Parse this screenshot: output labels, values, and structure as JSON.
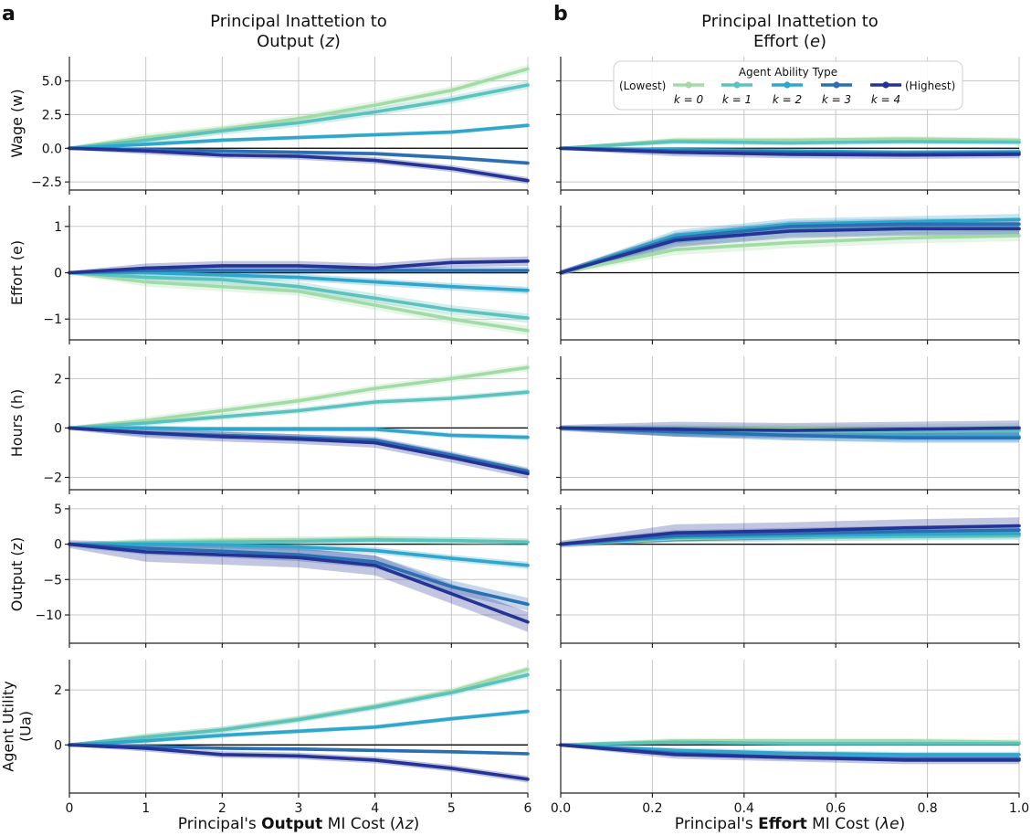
{
  "panel_letters": {
    "a": "a",
    "b": "b"
  },
  "column_titles": {
    "a": {
      "line1": "Principal Inattetion to",
      "line2_text": "Output (",
      "line2_var": "z",
      "line2_end": ")"
    },
    "b": {
      "line1": "Principal Inattetion to",
      "line2_text": "Effort (",
      "line2_var": "e",
      "line2_end": ")"
    }
  },
  "x_labels": {
    "a": {
      "pre": "Principal's ",
      "bold": "Output",
      "post": " MI Cost (",
      "var": "λz",
      "end": ")"
    },
    "b": {
      "pre": "Principal's ",
      "bold": "Effort",
      "post": " MI Cost (",
      "var": "λe",
      "end": ")"
    }
  },
  "row_labels": [
    {
      "lines": [
        "Wage (w)"
      ]
    },
    {
      "lines": [
        "Effort (e)"
      ]
    },
    {
      "lines": [
        "Hours (h)"
      ]
    },
    {
      "lines": [
        "Output (z)"
      ]
    },
    {
      "lines": [
        "Agent Utility",
        "(Ua)"
      ]
    }
  ],
  "legend": {
    "title": "Agent Ability Type",
    "left_text": "(Lowest)",
    "right_text": "(Highest)",
    "entries": [
      "k = 0",
      "k = 1",
      "k = 2",
      "k = 3",
      "k = 4"
    ]
  },
  "colors": [
    "#a3dba7",
    "#5cc2bd",
    "#2fa6cc",
    "#2a6fb2",
    "#253494"
  ],
  "chart_data": [
    {
      "type": "line",
      "panel": "a",
      "row": 0,
      "ylabel": "Wage (w)",
      "ylim": [
        -3.1,
        6.8
      ],
      "yticks": [
        -2.5,
        0.0,
        2.5,
        5.0
      ],
      "xlim": [
        0,
        6
      ],
      "xticks": [
        0,
        1,
        2,
        3,
        4,
        5,
        6
      ],
      "x": [
        0,
        1,
        2,
        3,
        4,
        5,
        6
      ],
      "series": [
        {
          "name": "k = 0",
          "values": [
            0,
            0.8,
            1.4,
            2.2,
            3.2,
            4.3,
            5.9
          ],
          "band": 0.3
        },
        {
          "name": "k = 1",
          "values": [
            0,
            0.6,
            1.3,
            1.9,
            2.7,
            3.6,
            4.7
          ],
          "band": 0.3
        },
        {
          "name": "k = 2",
          "values": [
            0,
            0.3,
            0.6,
            0.8,
            1.0,
            1.2,
            1.7
          ],
          "band": 0.15
        },
        {
          "name": "k = 3",
          "values": [
            0,
            -0.1,
            -0.2,
            -0.3,
            -0.4,
            -0.7,
            -1.1
          ],
          "band": 0.15
        },
        {
          "name": "k = 4",
          "values": [
            0,
            -0.2,
            -0.5,
            -0.6,
            -0.9,
            -1.5,
            -2.4
          ],
          "band": 0.25
        }
      ]
    },
    {
      "type": "line",
      "panel": "a",
      "row": 1,
      "ylabel": "Effort (e)",
      "ylim": [
        -1.45,
        1.45
      ],
      "yticks": [
        -1,
        0,
        1
      ],
      "xlim": [
        0,
        6
      ],
      "xticks": [
        0,
        1,
        2,
        3,
        4,
        5,
        6
      ],
      "x": [
        0,
        1,
        2,
        3,
        4,
        5,
        6
      ],
      "series": [
        {
          "name": "k = 0",
          "values": [
            0,
            -0.2,
            -0.3,
            -0.4,
            -0.7,
            -1.0,
            -1.25
          ],
          "band": 0.1
        },
        {
          "name": "k = 1",
          "values": [
            0,
            -0.1,
            -0.15,
            -0.3,
            -0.55,
            -0.8,
            -0.98
          ],
          "band": 0.1
        },
        {
          "name": "k = 2",
          "values": [
            0,
            0.0,
            -0.05,
            -0.1,
            -0.2,
            -0.3,
            -0.38
          ],
          "band": 0.08
        },
        {
          "name": "k = 3",
          "values": [
            0,
            0.05,
            0.05,
            0.05,
            0.05,
            0.05,
            0.05
          ],
          "band": 0.08
        },
        {
          "name": "k = 4",
          "values": [
            0,
            0.1,
            0.15,
            0.15,
            0.1,
            0.22,
            0.25
          ],
          "band": 0.1
        }
      ]
    },
    {
      "type": "line",
      "panel": "a",
      "row": 2,
      "ylabel": "Hours (h)",
      "ylim": [
        -2.5,
        2.9
      ],
      "yticks": [
        -2,
        0,
        2
      ],
      "xlim": [
        0,
        6
      ],
      "xticks": [
        0,
        1,
        2,
        3,
        4,
        5,
        6
      ],
      "x": [
        0,
        1,
        2,
        3,
        4,
        5,
        6
      ],
      "series": [
        {
          "name": "k = 0",
          "values": [
            0,
            0.3,
            0.7,
            1.1,
            1.6,
            2.0,
            2.45
          ],
          "band": 0.15
        },
        {
          "name": "k = 1",
          "values": [
            0,
            0.2,
            0.45,
            0.7,
            1.05,
            1.2,
            1.45
          ],
          "band": 0.12
        },
        {
          "name": "k = 2",
          "values": [
            0,
            0.0,
            -0.05,
            -0.05,
            -0.05,
            -0.3,
            -0.38
          ],
          "band": 0.1
        },
        {
          "name": "k = 3",
          "values": [
            0,
            -0.2,
            -0.3,
            -0.4,
            -0.5,
            -1.1,
            -1.75
          ],
          "band": 0.15
        },
        {
          "name": "k = 4",
          "values": [
            0,
            -0.2,
            -0.35,
            -0.45,
            -0.6,
            -1.2,
            -1.85
          ],
          "band": 0.2
        }
      ]
    },
    {
      "type": "line",
      "panel": "a",
      "row": 3,
      "ylabel": "Output (z)",
      "ylim": [
        -14,
        5.5
      ],
      "yticks": [
        -10,
        -5,
        0,
        5
      ],
      "xlim": [
        0,
        6
      ],
      "xticks": [
        0,
        1,
        2,
        3,
        4,
        5,
        6
      ],
      "x": [
        0,
        1,
        2,
        3,
        4,
        5,
        6
      ],
      "series": [
        {
          "name": "k = 0",
          "values": [
            0,
            0.3,
            0.5,
            0.6,
            0.7,
            0.5,
            0.3
          ],
          "band": 0.5
        },
        {
          "name": "k = 1",
          "values": [
            0,
            0.2,
            0.3,
            0.4,
            0.6,
            0.5,
            0.3
          ],
          "band": 0.5
        },
        {
          "name": "k = 2",
          "values": [
            0,
            0.0,
            -0.1,
            -0.4,
            -0.9,
            -2.0,
            -3.0
          ],
          "band": 0.5
        },
        {
          "name": "k = 3",
          "values": [
            0,
            -0.6,
            -1.0,
            -1.5,
            -2.5,
            -6.0,
            -8.5
          ],
          "band": 0.9
        },
        {
          "name": "k = 4",
          "values": [
            0,
            -1.1,
            -1.5,
            -1.9,
            -3.0,
            -7.0,
            -11.0
          ],
          "band": 1.4
        }
      ]
    },
    {
      "type": "line",
      "panel": "a",
      "row": 4,
      "ylabel": "Agent Utility (Ua)",
      "ylim": [
        -1.75,
        3.1
      ],
      "yticks": [
        0,
        2
      ],
      "xlim": [
        0,
        6
      ],
      "xticks": [
        0,
        1,
        2,
        3,
        4,
        5,
        6
      ],
      "x": [
        0,
        1,
        2,
        3,
        4,
        5,
        6
      ],
      "series": [
        {
          "name": "k = 0",
          "values": [
            0,
            0.3,
            0.55,
            0.95,
            1.4,
            1.95,
            2.75
          ],
          "band": 0.12
        },
        {
          "name": "k = 1",
          "values": [
            0,
            0.28,
            0.55,
            0.92,
            1.38,
            1.9,
            2.55
          ],
          "band": 0.12
        },
        {
          "name": "k = 2",
          "values": [
            0,
            0.15,
            0.35,
            0.5,
            0.65,
            0.95,
            1.22
          ],
          "band": 0.08
        },
        {
          "name": "k = 3",
          "values": [
            0,
            -0.05,
            -0.12,
            -0.15,
            -0.2,
            -0.25,
            -0.32
          ],
          "band": 0.06
        },
        {
          "name": "k = 4",
          "values": [
            0,
            -0.12,
            -0.35,
            -0.4,
            -0.55,
            -0.85,
            -1.25
          ],
          "band": 0.12
        }
      ]
    },
    {
      "type": "line",
      "panel": "b",
      "row": 0,
      "ylabel": "Wage (w)",
      "ylim": [
        -3.1,
        6.8
      ],
      "yticks": [
        -2.5,
        0.0,
        2.5,
        5.0
      ],
      "xlim": [
        0,
        1
      ],
      "xticks": [
        0.0,
        0.2,
        0.4,
        0.6,
        0.8,
        1.0
      ],
      "x": [
        0,
        0.25,
        0.5,
        0.75,
        1.0
      ],
      "series": [
        {
          "name": "k = 0",
          "values": [
            0,
            0.6,
            0.6,
            0.7,
            0.6
          ],
          "band": 0.2
        },
        {
          "name": "k = 1",
          "values": [
            0,
            0.5,
            0.4,
            0.5,
            0.45
          ],
          "band": 0.2
        },
        {
          "name": "k = 2",
          "values": [
            0,
            -0.1,
            -0.2,
            -0.3,
            -0.25
          ],
          "band": 0.2
        },
        {
          "name": "k = 3",
          "values": [
            0,
            -0.2,
            -0.3,
            -0.4,
            -0.35
          ],
          "band": 0.2
        },
        {
          "name": "k = 4",
          "values": [
            0,
            -0.3,
            -0.45,
            -0.5,
            -0.45
          ],
          "band": 0.3
        }
      ]
    },
    {
      "type": "line",
      "panel": "b",
      "row": 1,
      "ylabel": "Effort (e)",
      "ylim": [
        -1.45,
        1.45
      ],
      "yticks": [
        -1,
        0,
        1
      ],
      "xlim": [
        0,
        1
      ],
      "xticks": [
        0.0,
        0.2,
        0.4,
        0.6,
        0.8,
        1.0
      ],
      "x": [
        0,
        0.25,
        0.5,
        0.75,
        1.0
      ],
      "series": [
        {
          "name": "k = 0",
          "values": [
            0,
            0.5,
            0.65,
            0.75,
            0.8
          ],
          "band": 0.12
        },
        {
          "name": "k = 1",
          "values": [
            0,
            0.7,
            0.9,
            0.95,
            0.95
          ],
          "band": 0.12
        },
        {
          "name": "k = 2",
          "values": [
            0,
            0.8,
            1.05,
            1.1,
            1.15
          ],
          "band": 0.12
        },
        {
          "name": "k = 3",
          "values": [
            0,
            0.75,
            1.0,
            1.05,
            1.05
          ],
          "band": 0.12
        },
        {
          "name": "k = 4",
          "values": [
            0,
            0.7,
            0.9,
            0.95,
            0.95
          ],
          "band": 0.15
        }
      ]
    },
    {
      "type": "line",
      "panel": "b",
      "row": 2,
      "ylabel": "Hours (h)",
      "ylim": [
        -2.5,
        2.9
      ],
      "yticks": [
        -2,
        0,
        2
      ],
      "xlim": [
        0,
        1
      ],
      "xticks": [
        0.0,
        0.2,
        0.4,
        0.6,
        0.8,
        1.0
      ],
      "x": [
        0,
        0.25,
        0.5,
        0.75,
        1.0
      ],
      "series": [
        {
          "name": "k = 0",
          "values": [
            0,
            -0.05,
            -0.05,
            -0.05,
            0.0
          ],
          "band": 0.2
        },
        {
          "name": "k = 1",
          "values": [
            0,
            -0.1,
            -0.15,
            -0.15,
            -0.1
          ],
          "band": 0.2
        },
        {
          "name": "k = 2",
          "values": [
            0,
            -0.15,
            -0.3,
            -0.35,
            -0.35
          ],
          "band": 0.2
        },
        {
          "name": "k = 3",
          "values": [
            0,
            -0.15,
            -0.3,
            -0.4,
            -0.4
          ],
          "band": 0.2
        },
        {
          "name": "k = 4",
          "values": [
            0,
            -0.05,
            -0.1,
            -0.05,
            0.0
          ],
          "band": 0.3
        }
      ]
    },
    {
      "type": "line",
      "panel": "b",
      "row": 3,
      "ylabel": "Output (z)",
      "ylim": [
        -14,
        5.5
      ],
      "yticks": [
        -10,
        -5,
        0,
        5
      ],
      "xlim": [
        0,
        1
      ],
      "xticks": [
        0.0,
        0.2,
        0.4,
        0.6,
        0.8,
        1.0
      ],
      "x": [
        0,
        0.25,
        0.5,
        0.75,
        1.0
      ],
      "series": [
        {
          "name": "k = 0",
          "values": [
            0,
            0.8,
            1.0,
            1.2,
            1.3
          ],
          "band": 0.6
        },
        {
          "name": "k = 1",
          "values": [
            0,
            0.9,
            1.0,
            1.1,
            1.2
          ],
          "band": 0.6
        },
        {
          "name": "k = 2",
          "values": [
            0,
            1.0,
            1.2,
            1.4,
            1.5
          ],
          "band": 0.6
        },
        {
          "name": "k = 3",
          "values": [
            0,
            1.2,
            1.5,
            1.8,
            2.0
          ],
          "band": 0.8
        },
        {
          "name": "k = 4",
          "values": [
            0,
            1.6,
            1.9,
            2.3,
            2.6
          ],
          "band": 1.2
        }
      ]
    },
    {
      "type": "line",
      "panel": "b",
      "row": 4,
      "ylabel": "Agent Utility (Ua)",
      "ylim": [
        -1.75,
        3.1
      ],
      "yticks": [
        0,
        2
      ],
      "xlim": [
        0,
        1
      ],
      "xticks": [
        0.0,
        0.2,
        0.4,
        0.6,
        0.8,
        1.0
      ],
      "x": [
        0,
        0.25,
        0.5,
        0.75,
        1.0
      ],
      "series": [
        {
          "name": "k = 0",
          "values": [
            0,
            0.15,
            0.15,
            0.15,
            0.1
          ],
          "band": 0.1
        },
        {
          "name": "k = 1",
          "values": [
            0,
            0.1,
            0.05,
            0.05,
            0.05
          ],
          "band": 0.1
        },
        {
          "name": "k = 2",
          "values": [
            0,
            -0.2,
            -0.3,
            -0.35,
            -0.35
          ],
          "band": 0.1
        },
        {
          "name": "k = 3",
          "values": [
            0,
            -0.3,
            -0.45,
            -0.5,
            -0.5
          ],
          "band": 0.1
        },
        {
          "name": "k = 4",
          "values": [
            0,
            -0.35,
            -0.45,
            -0.55,
            -0.55
          ],
          "band": 0.15
        }
      ]
    }
  ]
}
